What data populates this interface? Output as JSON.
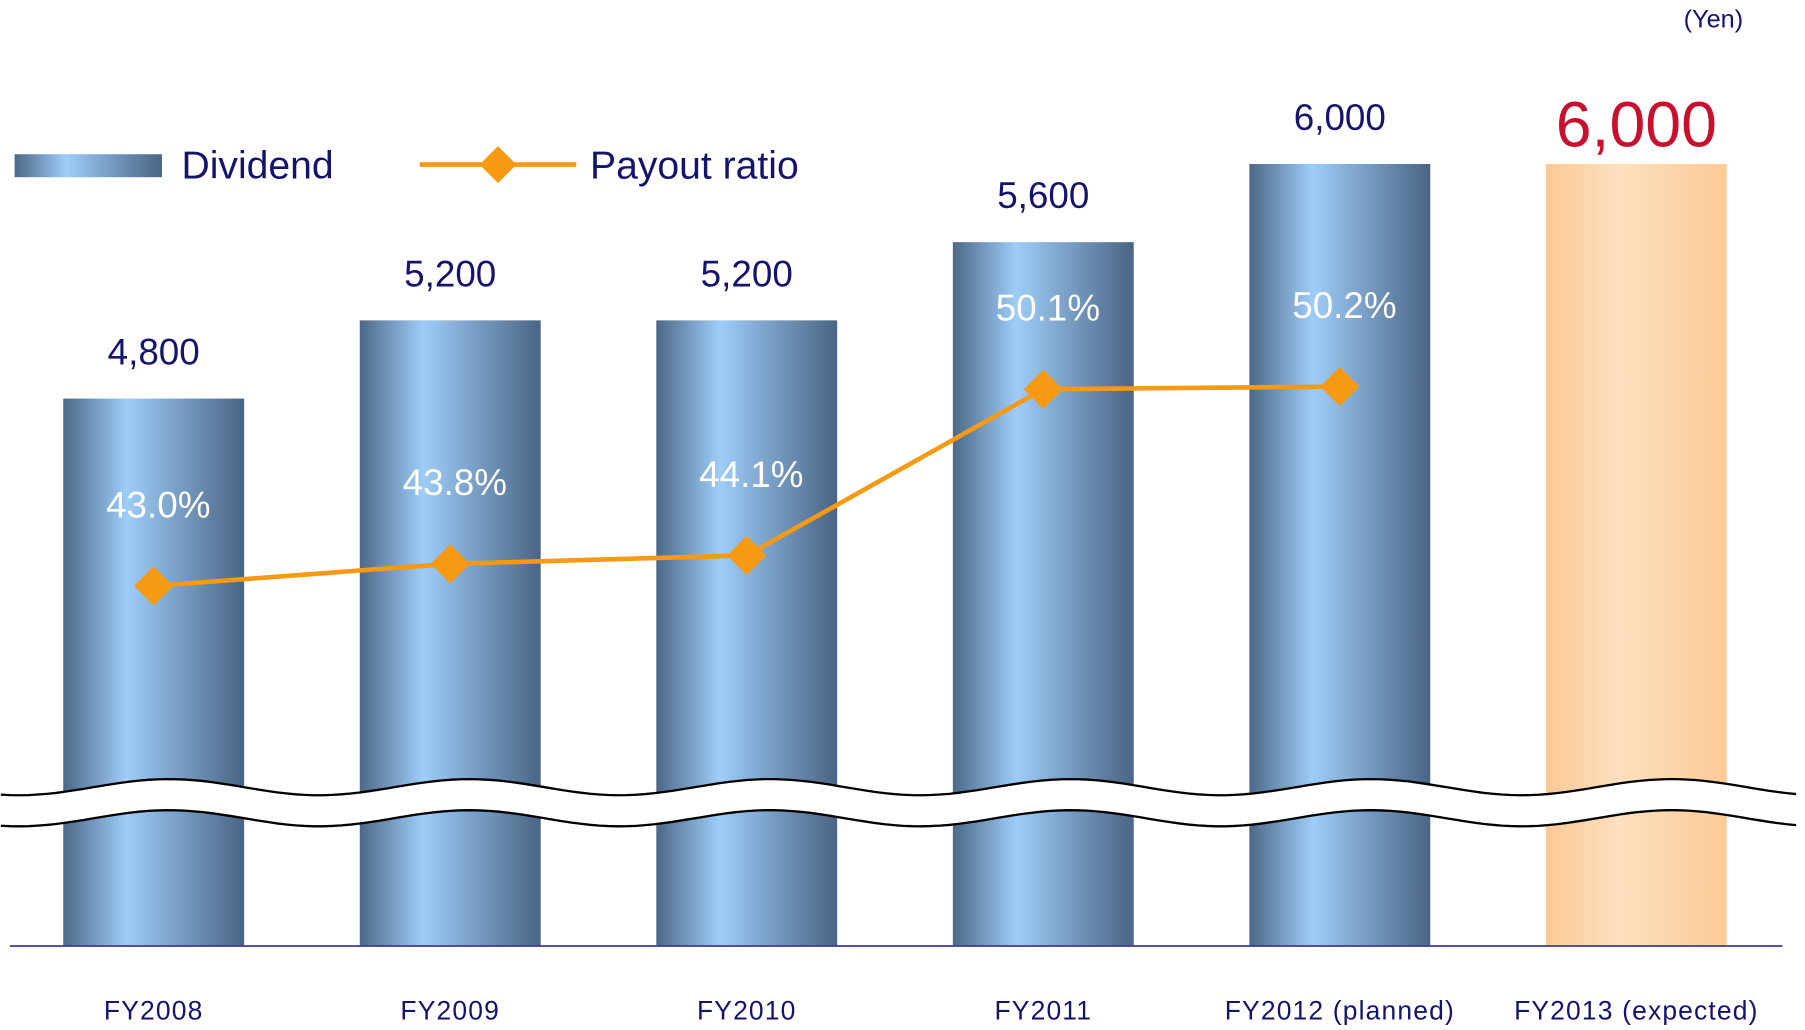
{
  "chart_data": {
    "type": "bar",
    "unit_label": "(Yen)",
    "categories": [
      "FY2008",
      "FY2009",
      "FY2010",
      "FY2011",
      "FY2012 (planned)",
      "FY2013 (expected)"
    ],
    "ylim": [
      2000,
      6250
    ],
    "y2lim": [
      30,
      60
    ],
    "series": [
      {
        "name": "Dividend",
        "type": "bar",
        "color": "#8fbbe6",
        "colors": [
          "#8fbbe6",
          "#8fbbe6",
          "#8fbbe6",
          "#8fbbe6",
          "#8fbbe6",
          "#fcd2a4"
        ],
        "values": [
          4800,
          5200,
          5200,
          5600,
          6000,
          6000
        ],
        "value_labels": [
          "4,800",
          "5,200",
          "5,200",
          "5,600",
          "6,000",
          "6,000"
        ],
        "value_label_colors": [
          "#14146e",
          "#14146e",
          "#14146e",
          "#14146e",
          "#14146e",
          "#c8102e"
        ]
      },
      {
        "name": "Payout ratio",
        "type": "line",
        "axis": "y2",
        "color": "#f59a12",
        "values": [
          43.0,
          43.8,
          44.1,
          50.1,
          50.2,
          null
        ],
        "value_labels": [
          "43.0%",
          "43.8%",
          "44.1%",
          "50.1%",
          "50.2%",
          null
        ]
      }
    ]
  }
}
